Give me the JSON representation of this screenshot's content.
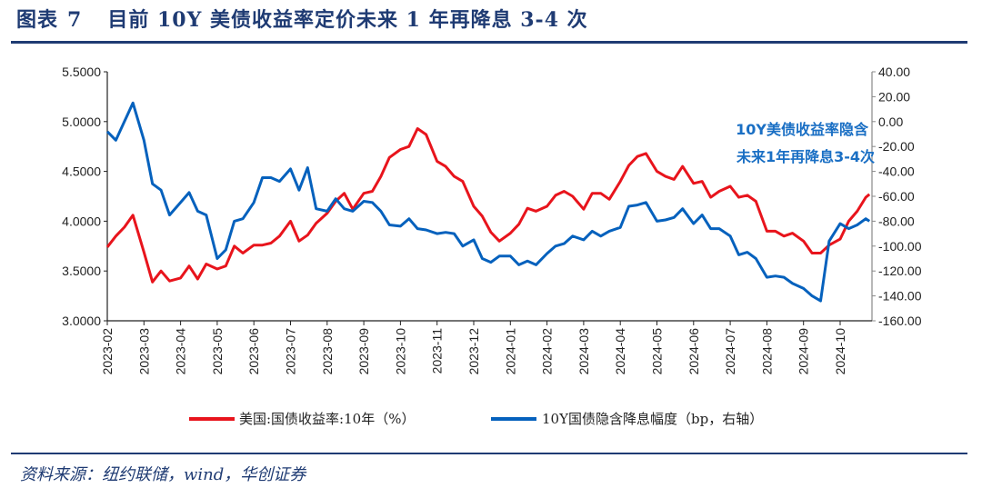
{
  "header": {
    "label": "图表",
    "number": "7",
    "title": "目前 10Y 美债收益率定价未来 1 年再降息 3-4 次"
  },
  "source": "资料来源：纽约联储，wind，华创证券",
  "colors": {
    "yield": "#e8141c",
    "implied": "#0561bd",
    "header": "#1f3b73",
    "annotation": "#1a6fc4"
  },
  "chart_data": {
    "type": "line",
    "xlabel": "",
    "ylabel": "",
    "x_tick_labels": [
      "2023-02",
      "2023-03",
      "2023-04",
      "2023-05",
      "2023-06",
      "2023-07",
      "2023-08",
      "2023-09",
      "2023-10",
      "2023-11",
      "2023-12",
      "2024-01",
      "2024-02",
      "2024-03",
      "2024-04",
      "2024-05",
      "2024-06",
      "2024-07",
      "2024-08",
      "2024-09",
      "2024-10"
    ],
    "y_left": {
      "range": [
        3.0,
        5.5
      ],
      "ticks": [
        "3.0000",
        "3.5000",
        "4.0000",
        "4.5000",
        "5.0000",
        "5.5000"
      ]
    },
    "y_right": {
      "range": [
        -160,
        40
      ],
      "ticks": [
        "-160.00",
        "-140.00",
        "-120.00",
        "-100.00",
        "-80.00",
        "-60.00",
        "-40.00",
        "-20.00",
        "0.00",
        "20.00",
        "40.00"
      ]
    },
    "grid": false,
    "legend_position": "bottom",
    "annotation": [
      "10Y美债收益率隐含",
      "未来1年再降息3-4次"
    ],
    "dates": [
      "2023-02-01",
      "2023-02-08",
      "2023-02-15",
      "2023-02-22",
      "2023-03-01",
      "2023-03-08",
      "2023-03-15",
      "2023-03-22",
      "2023-04-01",
      "2023-04-08",
      "2023-04-15",
      "2023-04-22",
      "2023-05-01",
      "2023-05-08",
      "2023-05-15",
      "2023-05-22",
      "2023-06-01",
      "2023-06-08",
      "2023-06-15",
      "2023-06-22",
      "2023-07-01",
      "2023-07-08",
      "2023-07-15",
      "2023-07-22",
      "2023-08-01",
      "2023-08-08",
      "2023-08-15",
      "2023-08-22",
      "2023-09-01",
      "2023-09-08",
      "2023-09-15",
      "2023-09-22",
      "2023-10-01",
      "2023-10-08",
      "2023-10-15",
      "2023-10-22",
      "2023-11-01",
      "2023-11-08",
      "2023-11-15",
      "2023-11-22",
      "2023-12-01",
      "2023-12-08",
      "2023-12-15",
      "2023-12-22",
      "2024-01-01",
      "2024-01-08",
      "2024-01-15",
      "2024-01-22",
      "2024-02-01",
      "2024-02-08",
      "2024-02-15",
      "2024-02-22",
      "2024-03-01",
      "2024-03-08",
      "2024-03-15",
      "2024-03-22",
      "2024-04-01",
      "2024-04-08",
      "2024-04-15",
      "2024-04-22",
      "2024-05-01",
      "2024-05-08",
      "2024-05-15",
      "2024-05-22",
      "2024-06-01",
      "2024-06-08",
      "2024-06-15",
      "2024-06-22",
      "2024-07-01",
      "2024-07-08",
      "2024-07-15",
      "2024-07-22",
      "2024-08-01",
      "2024-08-08",
      "2024-08-15",
      "2024-08-22",
      "2024-09-01",
      "2024-09-08",
      "2024-09-15",
      "2024-09-22",
      "2024-10-01",
      "2024-10-08",
      "2024-10-15",
      "2024-10-22",
      "2024-10-25"
    ],
    "series": [
      {
        "name": "美国:国债收益率:10年（%）",
        "axis": "left",
        "values": [
          3.74,
          3.85,
          3.94,
          4.06,
          3.69,
          3.39,
          3.5,
          3.4,
          3.43,
          3.55,
          3.42,
          3.57,
          3.52,
          3.55,
          3.75,
          3.68,
          3.76,
          3.76,
          3.78,
          3.85,
          4.0,
          3.8,
          3.86,
          3.98,
          4.08,
          4.2,
          4.28,
          4.12,
          4.28,
          4.3,
          4.45,
          4.64,
          4.72,
          4.75,
          4.93,
          4.87,
          4.6,
          4.55,
          4.45,
          4.4,
          4.15,
          4.05,
          3.89,
          3.8,
          3.88,
          3.97,
          4.13,
          4.1,
          4.15,
          4.26,
          4.3,
          4.25,
          4.12,
          4.28,
          4.28,
          4.22,
          4.4,
          4.56,
          4.65,
          4.68,
          4.5,
          4.45,
          4.42,
          4.55,
          4.38,
          4.4,
          4.24,
          4.3,
          4.35,
          4.24,
          4.26,
          4.2,
          3.9,
          3.9,
          3.85,
          3.88,
          3.8,
          3.68,
          3.68,
          3.76,
          3.82,
          4.0,
          4.1,
          4.24,
          4.27
        ]
      },
      {
        "name": "10Y国债隐含降息幅度（bp，右轴）",
        "axis": "right",
        "values": [
          -8,
          -15,
          0,
          15,
          -15,
          -50,
          -55,
          -75,
          -65,
          -57,
          -72,
          -75,
          -110,
          -103,
          -80,
          -78,
          -65,
          -45,
          -45,
          -48,
          -38,
          -55,
          -37,
          -70,
          -72,
          -62,
          -70,
          -72,
          -64,
          -65,
          -72,
          -83,
          -84,
          -78,
          -86,
          -87,
          -90,
          -89,
          -90,
          -100,
          -95,
          -110,
          -113,
          -108,
          -108,
          -115,
          -112,
          -115,
          -106,
          -100,
          -98,
          -92,
          -95,
          -88,
          -92,
          -88,
          -85,
          -68,
          -67,
          -65,
          -80,
          -79,
          -77,
          -70,
          -82,
          -75,
          -86,
          -86,
          -92,
          -107,
          -105,
          -110,
          -125,
          -124,
          -125,
          -130,
          -134,
          -140,
          -144,
          -96,
          -82,
          -86,
          -83,
          -78,
          -80
        ]
      }
    ]
  }
}
